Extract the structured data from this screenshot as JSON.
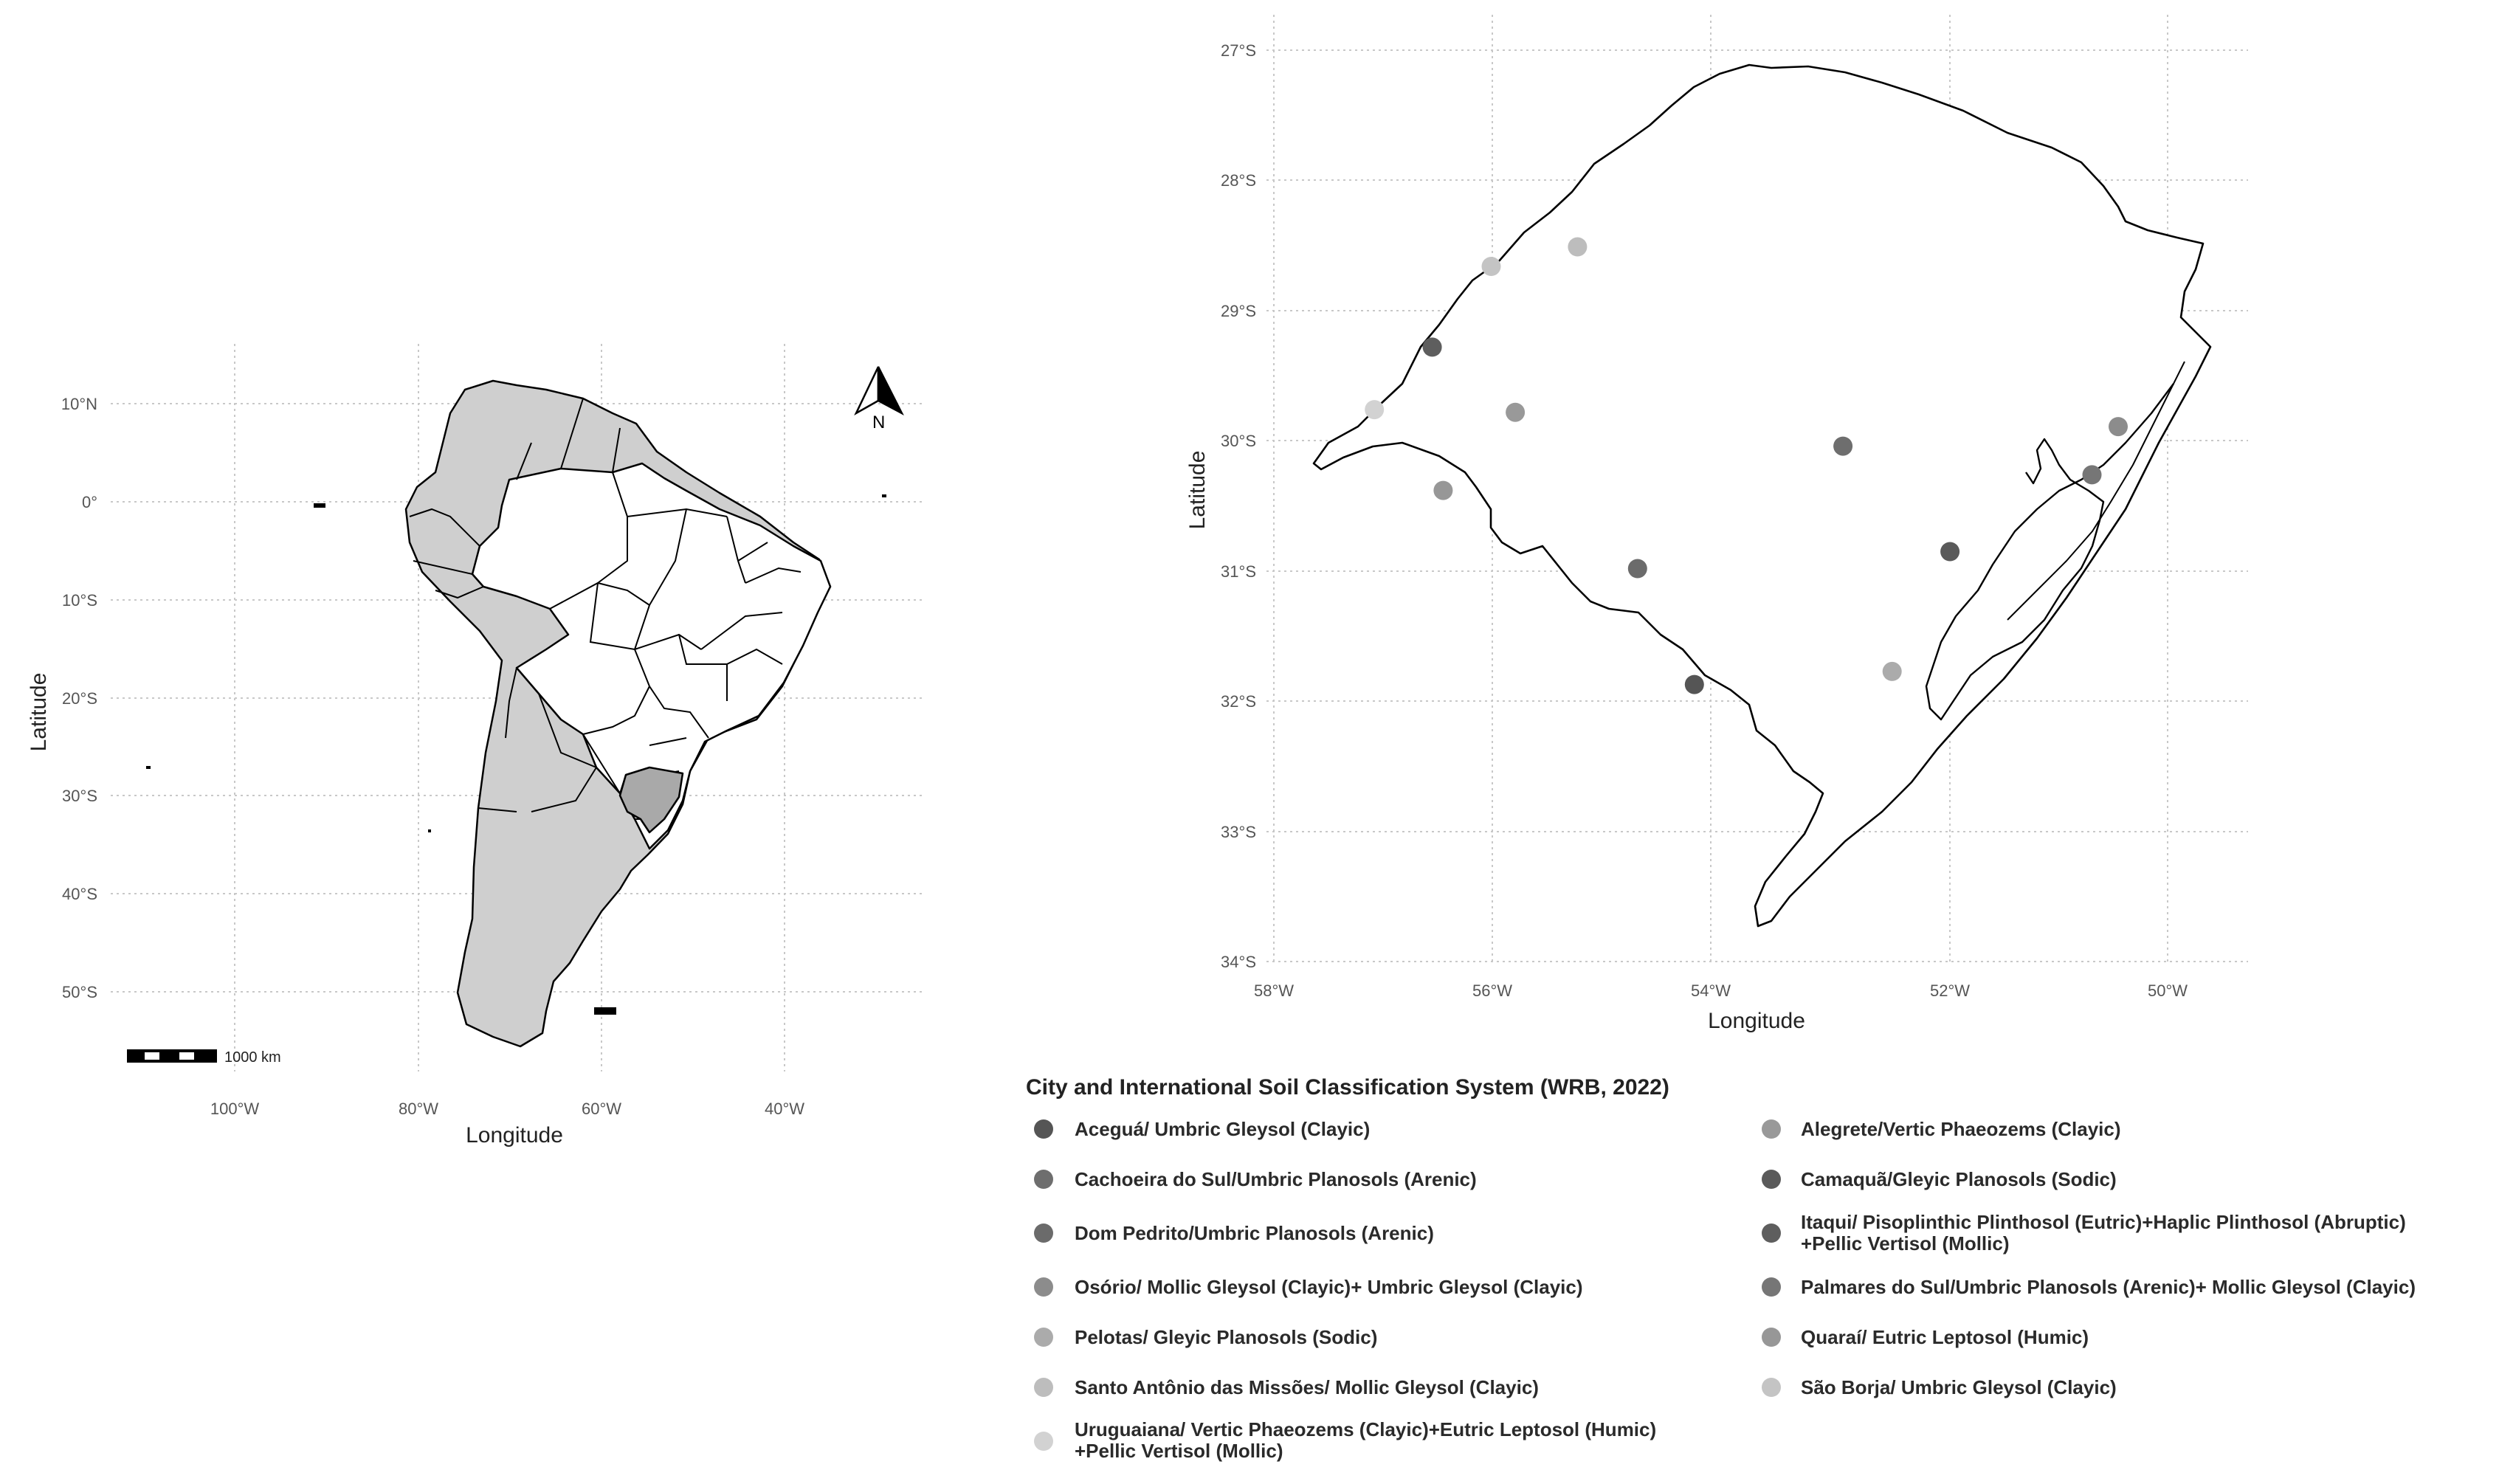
{
  "south_america_map": {
    "xlabel": "Longitude",
    "ylabel": "Latitude",
    "lat_ticks": [
      "10°N",
      "0°",
      "10°S",
      "20°S",
      "30°S",
      "40°S",
      "50°S"
    ],
    "lon_ticks": [
      "100°W",
      "80°W",
      "60°W",
      "40°W"
    ],
    "scale_bar_label": "1000 km",
    "north_arrow_label": "N",
    "colors": {
      "countries": "#cfcfcf",
      "brazil": "#ffffff",
      "highlight_state": "#a9a9a9",
      "outline": "#000000"
    }
  },
  "rs_map": {
    "xlabel": "Longitude",
    "ylabel": "Latitude",
    "lat_ticks": [
      "27°S",
      "28°S",
      "29°S",
      "30°S",
      "31°S",
      "32°S",
      "33°S",
      "34°S"
    ],
    "lon_ticks": [
      "58°W",
      "56°W",
      "54°W",
      "52°W",
      "50°W"
    ],
    "colors": {
      "state_fill": "#ffffff",
      "outline": "#000000"
    }
  },
  "legend": {
    "title": "City and International Soil Classification System (WRB, 2022)",
    "items": [
      {
        "label": "Aceguá/ Umbric Gleysol (Clayic)",
        "color": "#555555"
      },
      {
        "label": "Alegrete/Vertic Phaeozems (Clayic)",
        "color": "#999999"
      },
      {
        "label": "Cachoeira do Sul/Umbric Planosols (Arenic)",
        "color": "#6e6e6e"
      },
      {
        "label": "Camaquã/Gleyic Planosols (Sodic)",
        "color": "#5a5a5a"
      },
      {
        "label": "Dom Pedrito/Umbric Planosols (Arenic)",
        "color": "#6b6b6b"
      },
      {
        "label": "Itaqui/ Pisoplinthic Plinthosol (Eutric)+Haplic Plinthosol (Abruptic)",
        "label_line2": "+Pellic Vertisol (Mollic)",
        "color": "#5e5e5e"
      },
      {
        "label": "Osório/ Mollic Gleysol (Clayic)+ Umbric Gleysol (Clayic)",
        "color": "#8c8c8c"
      },
      {
        "label": "Palmares do Sul/Umbric Planosols (Arenic)+ Mollic Gleysol (Clayic)",
        "color": "#767676"
      },
      {
        "label": "Pelotas/ Gleyic Planosols (Sodic)",
        "color": "#ababab"
      },
      {
        "label": "Quaraí/ Eutric Leptosol (Humic)",
        "color": "#979797"
      },
      {
        "label": "Santo Antônio das Missões/ Mollic Gleysol (Clayic)",
        "color": "#bdbdbd"
      },
      {
        "label": "São Borja/ Umbric Gleysol (Clayic)",
        "color": "#c4c4c4"
      },
      {
        "label": "Uruguaiana/ Vertic Phaeozems (Clayic)+Eutric Leptosol (Humic)",
        "label_line2": "+Pellic Vertisol (Mollic)",
        "color": "#d2d2d2"
      }
    ]
  },
  "points": [
    {
      "city": "Aceguá",
      "lon": -54.15,
      "lat": -31.87
    },
    {
      "city": "Alegrete",
      "lon": -55.79,
      "lat": -29.78
    },
    {
      "city": "Cachoeira do Sul",
      "lon": -52.79,
      "lat": -30.04
    },
    {
      "city": "Camaquã",
      "lon": -51.81,
      "lat": -30.85
    },
    {
      "city": "Dom Pedrito",
      "lon": -54.67,
      "lat": -30.98
    },
    {
      "city": "Itaqui",
      "lon": -56.55,
      "lat": -29.28
    },
    {
      "city": "Osório",
      "lon": -50.27,
      "lat": -29.89
    },
    {
      "city": "Palmares do Sul",
      "lon": -50.51,
      "lat": -30.26
    },
    {
      "city": "Pelotas",
      "lon": -52.34,
      "lat": -31.77
    },
    {
      "city": "Quaraí",
      "lon": -56.45,
      "lat": -30.38
    },
    {
      "city": "Santo Antônio das Missões",
      "lon": -55.22,
      "lat": -28.51
    },
    {
      "city": "São Borja",
      "lon": -56.01,
      "lat": -28.66
    },
    {
      "city": "Uruguaiana",
      "lon": -57.08,
      "lat": -29.76
    }
  ]
}
